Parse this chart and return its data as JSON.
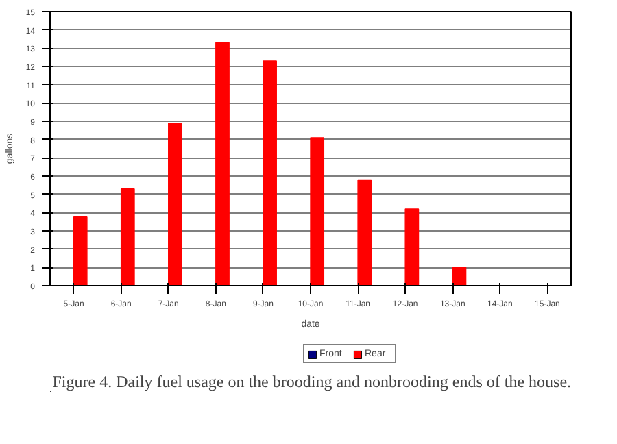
{
  "chart_data": {
    "type": "bar",
    "xlabel": "date",
    "ylabel": "gallons",
    "categories": [
      "5-Jan",
      "6-Jan",
      "7-Jan",
      "8-Jan",
      "9-Jan",
      "10-Jan",
      "11-Jan",
      "12-Jan",
      "13-Jan",
      "14-Jan",
      "15-Jan"
    ],
    "series": [
      {
        "name": "Front",
        "color": "#000080",
        "values": [
          0,
          0,
          0,
          0,
          0,
          0,
          0,
          0,
          0,
          0,
          0
        ]
      },
      {
        "name": "Rear",
        "color": "#ff0000",
        "values": [
          3.8,
          5.3,
          8.9,
          13.3,
          12.3,
          8.1,
          5.8,
          4.2,
          1.0,
          0,
          0
        ]
      }
    ],
    "ylim": [
      0,
      15
    ],
    "yticks": [
      0,
      1,
      2,
      3,
      4,
      5,
      6,
      7,
      8,
      9,
      10,
      11,
      12,
      13,
      14,
      15
    ],
    "grid": "y",
    "legend": "bottom",
    "annotations": [
      "Figure 4.  Daily fuel usage on the brooding and nonbrooding ends of the house."
    ]
  }
}
